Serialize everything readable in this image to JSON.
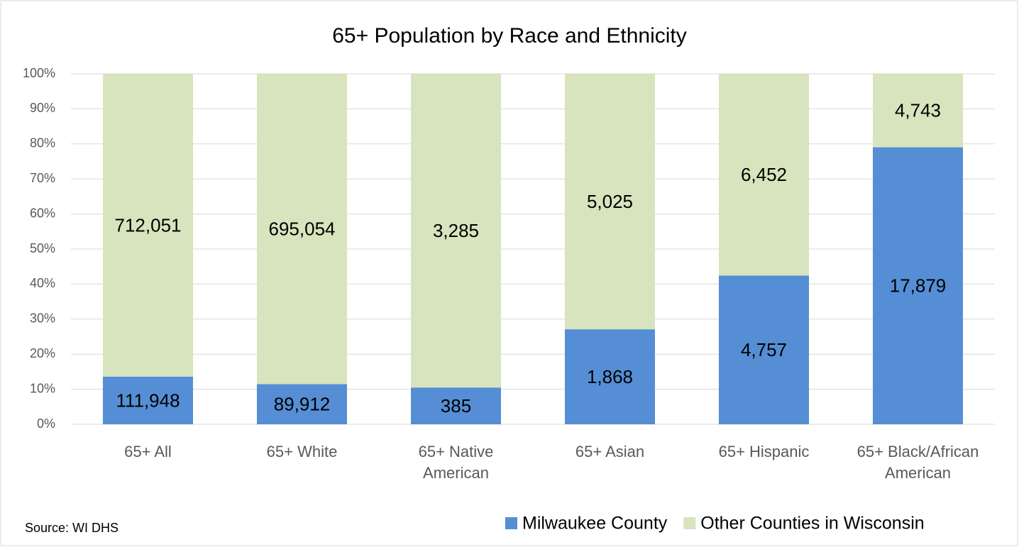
{
  "chart_data": {
    "type": "bar",
    "stacking": "percent",
    "title": "65+ Population by Race and Ethnicity",
    "source": "Source: WI DHS",
    "categories": [
      "65+ All",
      "65+ White",
      "65+ Native American",
      "65+ Asian",
      "65+ Hispanic",
      "65+ Black/African American"
    ],
    "series": [
      {
        "name": "Milwaukee County",
        "color": "#558ed5",
        "values": [
          111948,
          89912,
          385,
          1868,
          4757,
          17879
        ],
        "value_labels": [
          "111,948",
          "89,912",
          "385",
          "1,868",
          "4,757",
          "17,879"
        ]
      },
      {
        "name": "Other Counties in Wisconsin",
        "color": "#d7e4bd",
        "values": [
          712051,
          695054,
          3285,
          5025,
          6452,
          4743
        ],
        "value_labels": [
          "712,051",
          "695,054",
          "3,285",
          "5,025",
          "6,452",
          "4,743"
        ]
      }
    ],
    "ylim": [
      0,
      100
    ],
    "yticks": [
      {
        "value": 0,
        "label": "0%"
      },
      {
        "value": 10,
        "label": "10%"
      },
      {
        "value": 20,
        "label": "20%"
      },
      {
        "value": 30,
        "label": "30%"
      },
      {
        "value": 40,
        "label": "40%"
      },
      {
        "value": 50,
        "label": "50%"
      },
      {
        "value": 60,
        "label": "60%"
      },
      {
        "value": 70,
        "label": "70%"
      },
      {
        "value": 80,
        "label": "80%"
      },
      {
        "value": 90,
        "label": "90%"
      },
      {
        "value": 100,
        "label": "100%"
      }
    ],
    "grid": true,
    "legend": "bottom-right"
  }
}
